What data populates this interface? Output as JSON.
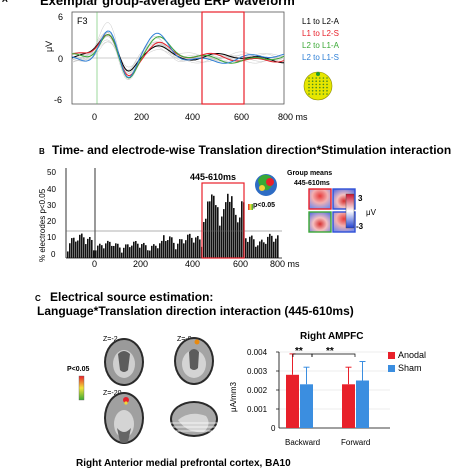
{
  "panel_a": {
    "letter": "A",
    "title": "Exemplar group-averaged ERP waveform",
    "electrode": "F3",
    "ylabel": "μV",
    "yticks": [
      "6",
      "0",
      "-6"
    ],
    "xticks": [
      "0",
      "200",
      "400",
      "600"
    ],
    "xunit": "800 ms",
    "legend": [
      {
        "label": "L1 to L2-A",
        "color": "#000000"
      },
      {
        "label": "L1 to L2-S",
        "color": "#e8202a"
      },
      {
        "label": "L2 to L1-A",
        "color": "#3aa935"
      },
      {
        "label": "L2 to L1-S",
        "color": "#2e7fd6"
      }
    ],
    "highlight_color": "#e8202a"
  },
  "panel_b": {
    "letter": "B",
    "title": "Time- and electrode-wise Translation direction*Stimulation interaction",
    "ylabel": "% electrodes p<0.05",
    "yticks": [
      "50",
      "40",
      "30",
      "20",
      "10",
      "0"
    ],
    "xticks": [
      "0",
      "200",
      "400",
      "600"
    ],
    "xunit": "800 ms",
    "window_label": "445-610ms",
    "pvalue_label": "p<0.05",
    "group_means_title": "Group means",
    "group_means_window": "445-610ms",
    "scale_labels": [
      "3",
      "μV",
      "-3"
    ]
  },
  "panel_c": {
    "letter": "C",
    "title_line1": "Electrical source estimation:",
    "title_line2": "Language*Translation direction interaction (445-610ms)",
    "slice_labels": [
      "Z=-2",
      "Z=-9",
      "Z=-20"
    ],
    "colorbar_label": "P<0.05",
    "region_caption": "Right Anterior medial prefrontal cortex, BA10"
  },
  "chart_data": {
    "type": "bar",
    "title": "Right AMPFC",
    "categories": [
      "Backward",
      "Forward"
    ],
    "series": [
      {
        "name": "Anodal",
        "values": [
          0.0028,
          0.0023
        ],
        "errors": [
          0.0011,
          0.0009
        ],
        "color": "#e8202a"
      },
      {
        "name": "Sham",
        "values": [
          0.0023,
          0.0025
        ],
        "errors": [
          0.0009,
          0.001
        ],
        "color": "#3b8ee0"
      }
    ],
    "ylabel": "μA/mm3",
    "ytick_labels": [
      "0",
      "0.001",
      "0.002",
      "0.003",
      "0.004"
    ],
    "ylim": [
      0,
      0.004
    ],
    "significance": [
      "**",
      "**"
    ],
    "legend_position": "right"
  }
}
